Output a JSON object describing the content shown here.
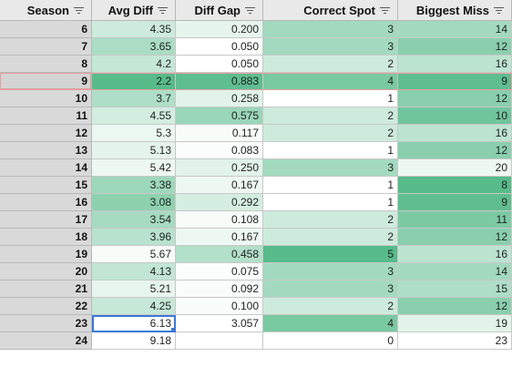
{
  "headers": [
    "Season",
    "Avg Diff",
    "Diff Gap",
    "Correct Spot",
    "Biggest Miss"
  ],
  "colors": {
    "high": "#57bb8a",
    "low": "#ffffff"
  },
  "rows": [
    {
      "season": "6",
      "avg_diff": "4.35",
      "diff_gap": "0.200",
      "correct": "3",
      "miss": "14",
      "avg_fill": 0.3,
      "gap_fill": 0.15,
      "cor_fill": 0.55,
      "miss_fill": 0.55
    },
    {
      "season": "7",
      "avg_diff": "3.65",
      "diff_gap": "0.050",
      "correct": "3",
      "miss": "12",
      "avg_fill": 0.5,
      "gap_fill": 0.0,
      "cor_fill": 0.55,
      "miss_fill": 0.7
    },
    {
      "season": "8",
      "avg_diff": "4.2",
      "diff_gap": "0.050",
      "correct": "2",
      "miss": "16",
      "avg_fill": 0.35,
      "gap_fill": 0.0,
      "cor_fill": 0.3,
      "miss_fill": 0.4
    },
    {
      "season": "9",
      "avg_diff": "2.2",
      "diff_gap": "0.883",
      "correct": "4",
      "miss": "9",
      "avg_fill": 1.0,
      "gap_fill": 0.95,
      "cor_fill": 0.8,
      "miss_fill": 0.95
    },
    {
      "season": "10",
      "avg_diff": "3.7",
      "diff_gap": "0.258",
      "correct": "1",
      "miss": "12",
      "avg_fill": 0.48,
      "gap_fill": 0.18,
      "cor_fill": 0.0,
      "miss_fill": 0.7
    },
    {
      "season": "11",
      "avg_diff": "4.55",
      "diff_gap": "0.575",
      "correct": "2",
      "miss": "10",
      "avg_fill": 0.26,
      "gap_fill": 0.6,
      "cor_fill": 0.3,
      "miss_fill": 0.85
    },
    {
      "season": "12",
      "avg_diff": "5.3",
      "diff_gap": "0.117",
      "correct": "2",
      "miss": "16",
      "avg_fill": 0.12,
      "gap_fill": 0.05,
      "cor_fill": 0.3,
      "miss_fill": 0.4
    },
    {
      "season": "13",
      "avg_diff": "5.13",
      "diff_gap": "0.083",
      "correct": "1",
      "miss": "12",
      "avg_fill": 0.16,
      "gap_fill": 0.03,
      "cor_fill": 0.0,
      "miss_fill": 0.7
    },
    {
      "season": "14",
      "avg_diff": "5.42",
      "diff_gap": "0.250",
      "correct": "3",
      "miss": "20",
      "avg_fill": 0.1,
      "gap_fill": 0.18,
      "cor_fill": 0.55,
      "miss_fill": 0.1
    },
    {
      "season": "15",
      "avg_diff": "3.38",
      "diff_gap": "0.167",
      "correct": "1",
      "miss": "8",
      "avg_fill": 0.58,
      "gap_fill": 0.1,
      "cor_fill": 0.0,
      "miss_fill": 1.0
    },
    {
      "season": "16",
      "avg_diff": "3.08",
      "diff_gap": "0.292",
      "correct": "1",
      "miss": "9",
      "avg_fill": 0.68,
      "gap_fill": 0.25,
      "cor_fill": 0.0,
      "miss_fill": 0.95
    },
    {
      "season": "17",
      "avg_diff": "3.54",
      "diff_gap": "0.108",
      "correct": "2",
      "miss": "11",
      "avg_fill": 0.53,
      "gap_fill": 0.05,
      "cor_fill": 0.3,
      "miss_fill": 0.78
    },
    {
      "season": "18",
      "avg_diff": "3.96",
      "diff_gap": "0.167",
      "correct": "2",
      "miss": "12",
      "avg_fill": 0.42,
      "gap_fill": 0.1,
      "cor_fill": 0.3,
      "miss_fill": 0.7
    },
    {
      "season": "19",
      "avg_diff": "5.67",
      "diff_gap": "0.458",
      "correct": "5",
      "miss": "16",
      "avg_fill": 0.05,
      "gap_fill": 0.45,
      "cor_fill": 1.0,
      "miss_fill": 0.4
    },
    {
      "season": "20",
      "avg_diff": "4.13",
      "diff_gap": "0.075",
      "correct": "3",
      "miss": "14",
      "avg_fill": 0.37,
      "gap_fill": 0.02,
      "cor_fill": 0.55,
      "miss_fill": 0.55
    },
    {
      "season": "21",
      "avg_diff": "5.21",
      "diff_gap": "0.092",
      "correct": "3",
      "miss": "15",
      "avg_fill": 0.14,
      "gap_fill": 0.04,
      "cor_fill": 0.55,
      "miss_fill": 0.48
    },
    {
      "season": "22",
      "avg_diff": "4.25",
      "diff_gap": "0.100",
      "correct": "2",
      "miss": "12",
      "avg_fill": 0.34,
      "gap_fill": 0.04,
      "cor_fill": 0.3,
      "miss_fill": 0.7
    },
    {
      "season": "23",
      "avg_diff": "6.13",
      "diff_gap": "3.057",
      "correct": "4",
      "miss": "19",
      "avg_fill": 0.0,
      "gap_fill": 0.0,
      "cor_fill": 0.8,
      "miss_fill": 0.18
    },
    {
      "season": "24",
      "avg_diff": "9.18",
      "diff_gap": "",
      "correct": "0",
      "miss": "23",
      "avg_fill": 0.0,
      "gap_fill": 0.0,
      "cor_fill": 0.0,
      "miss_fill": 0.0
    }
  ],
  "selected_row": 3,
  "active_cell": {
    "row": 17,
    "column": "avg_diff"
  }
}
